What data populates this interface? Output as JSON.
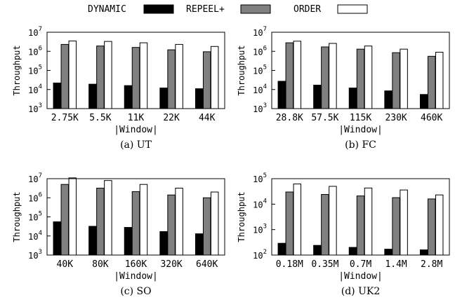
{
  "legend": {
    "items": [
      {
        "label": "DYNAMIC",
        "fill": "#000000"
      },
      {
        "label": "REPEEL+",
        "fill": "#808080"
      },
      {
        "label": "ORDER",
        "fill": "#ffffff"
      }
    ]
  },
  "chart_data": [
    {
      "type": "bar",
      "caption": "(a) UT",
      "xlabel": "|Window|",
      "ylabel": "Throughput",
      "yscale": "log",
      "ylim": [
        1000,
        10000000
      ],
      "ytick_exponents": [
        "3",
        "4",
        "5",
        "6",
        "7"
      ],
      "categories": [
        "2.75K",
        "5.5K",
        "11K",
        "22K",
        "44K"
      ],
      "series": [
        {
          "name": "DYNAMIC",
          "values": [
            22000,
            19000,
            16000,
            12000,
            11000
          ]
        },
        {
          "name": "REPEEL+",
          "values": [
            2300000,
            1900000,
            1600000,
            1200000,
            950000
          ]
        },
        {
          "name": "ORDER",
          "values": [
            3500000,
            3300000,
            2800000,
            2300000,
            1800000
          ]
        }
      ]
    },
    {
      "type": "bar",
      "caption": "(b) FC",
      "xlabel": "|Window|",
      "ylabel": "Throughput",
      "yscale": "log",
      "ylim": [
        1000,
        10000000
      ],
      "ytick_exponents": [
        "3",
        "4",
        "5",
        "6",
        "7"
      ],
      "categories": [
        "28.8K",
        "57.5K",
        "115K",
        "230K",
        "460K"
      ],
      "series": [
        {
          "name": "DYNAMIC",
          "values": [
            27000,
            17000,
            12000,
            8500,
            5500
          ]
        },
        {
          "name": "REPEEL+",
          "values": [
            2800000,
            1700000,
            1300000,
            850000,
            550000
          ]
        },
        {
          "name": "ORDER",
          "values": [
            3400000,
            2600000,
            1900000,
            1300000,
            900000
          ]
        }
      ]
    },
    {
      "type": "bar",
      "caption": "(c) SO",
      "xlabel": "|Window|",
      "ylabel": "Throughput",
      "yscale": "log",
      "ylim": [
        1000,
        10000000
      ],
      "ytick_exponents": [
        "3",
        "4",
        "5",
        "6",
        "7"
      ],
      "categories": [
        "40K",
        "80K",
        "160K",
        "320K",
        "640K"
      ],
      "series": [
        {
          "name": "DYNAMIC",
          "values": [
            55000,
            32000,
            28000,
            17000,
            13000
          ]
        },
        {
          "name": "REPEEL+",
          "values": [
            5000000,
            3200000,
            2100000,
            1400000,
            1000000
          ]
        },
        {
          "name": "ORDER",
          "values": [
            11000000,
            8000000,
            5000000,
            3200000,
            2000000
          ]
        }
      ]
    },
    {
      "type": "bar",
      "caption": "(d) UK2",
      "xlabel": "|Window|",
      "ylabel": "Throughput",
      "yscale": "log",
      "ylim": [
        100,
        100000
      ],
      "ytick_exponents": [
        "2",
        "3",
        "4",
        "5"
      ],
      "categories": [
        "0.18M",
        "0.35M",
        "0.7M",
        "1.4M",
        "2.8M"
      ],
      "series": [
        {
          "name": "DYNAMIC",
          "values": [
            290,
            240,
            200,
            170,
            160
          ]
        },
        {
          "name": "REPEEL+",
          "values": [
            30000,
            24000,
            21000,
            18000,
            16000
          ]
        },
        {
          "name": "ORDER",
          "values": [
            62000,
            50000,
            43000,
            36000,
            23000
          ]
        }
      ]
    }
  ]
}
